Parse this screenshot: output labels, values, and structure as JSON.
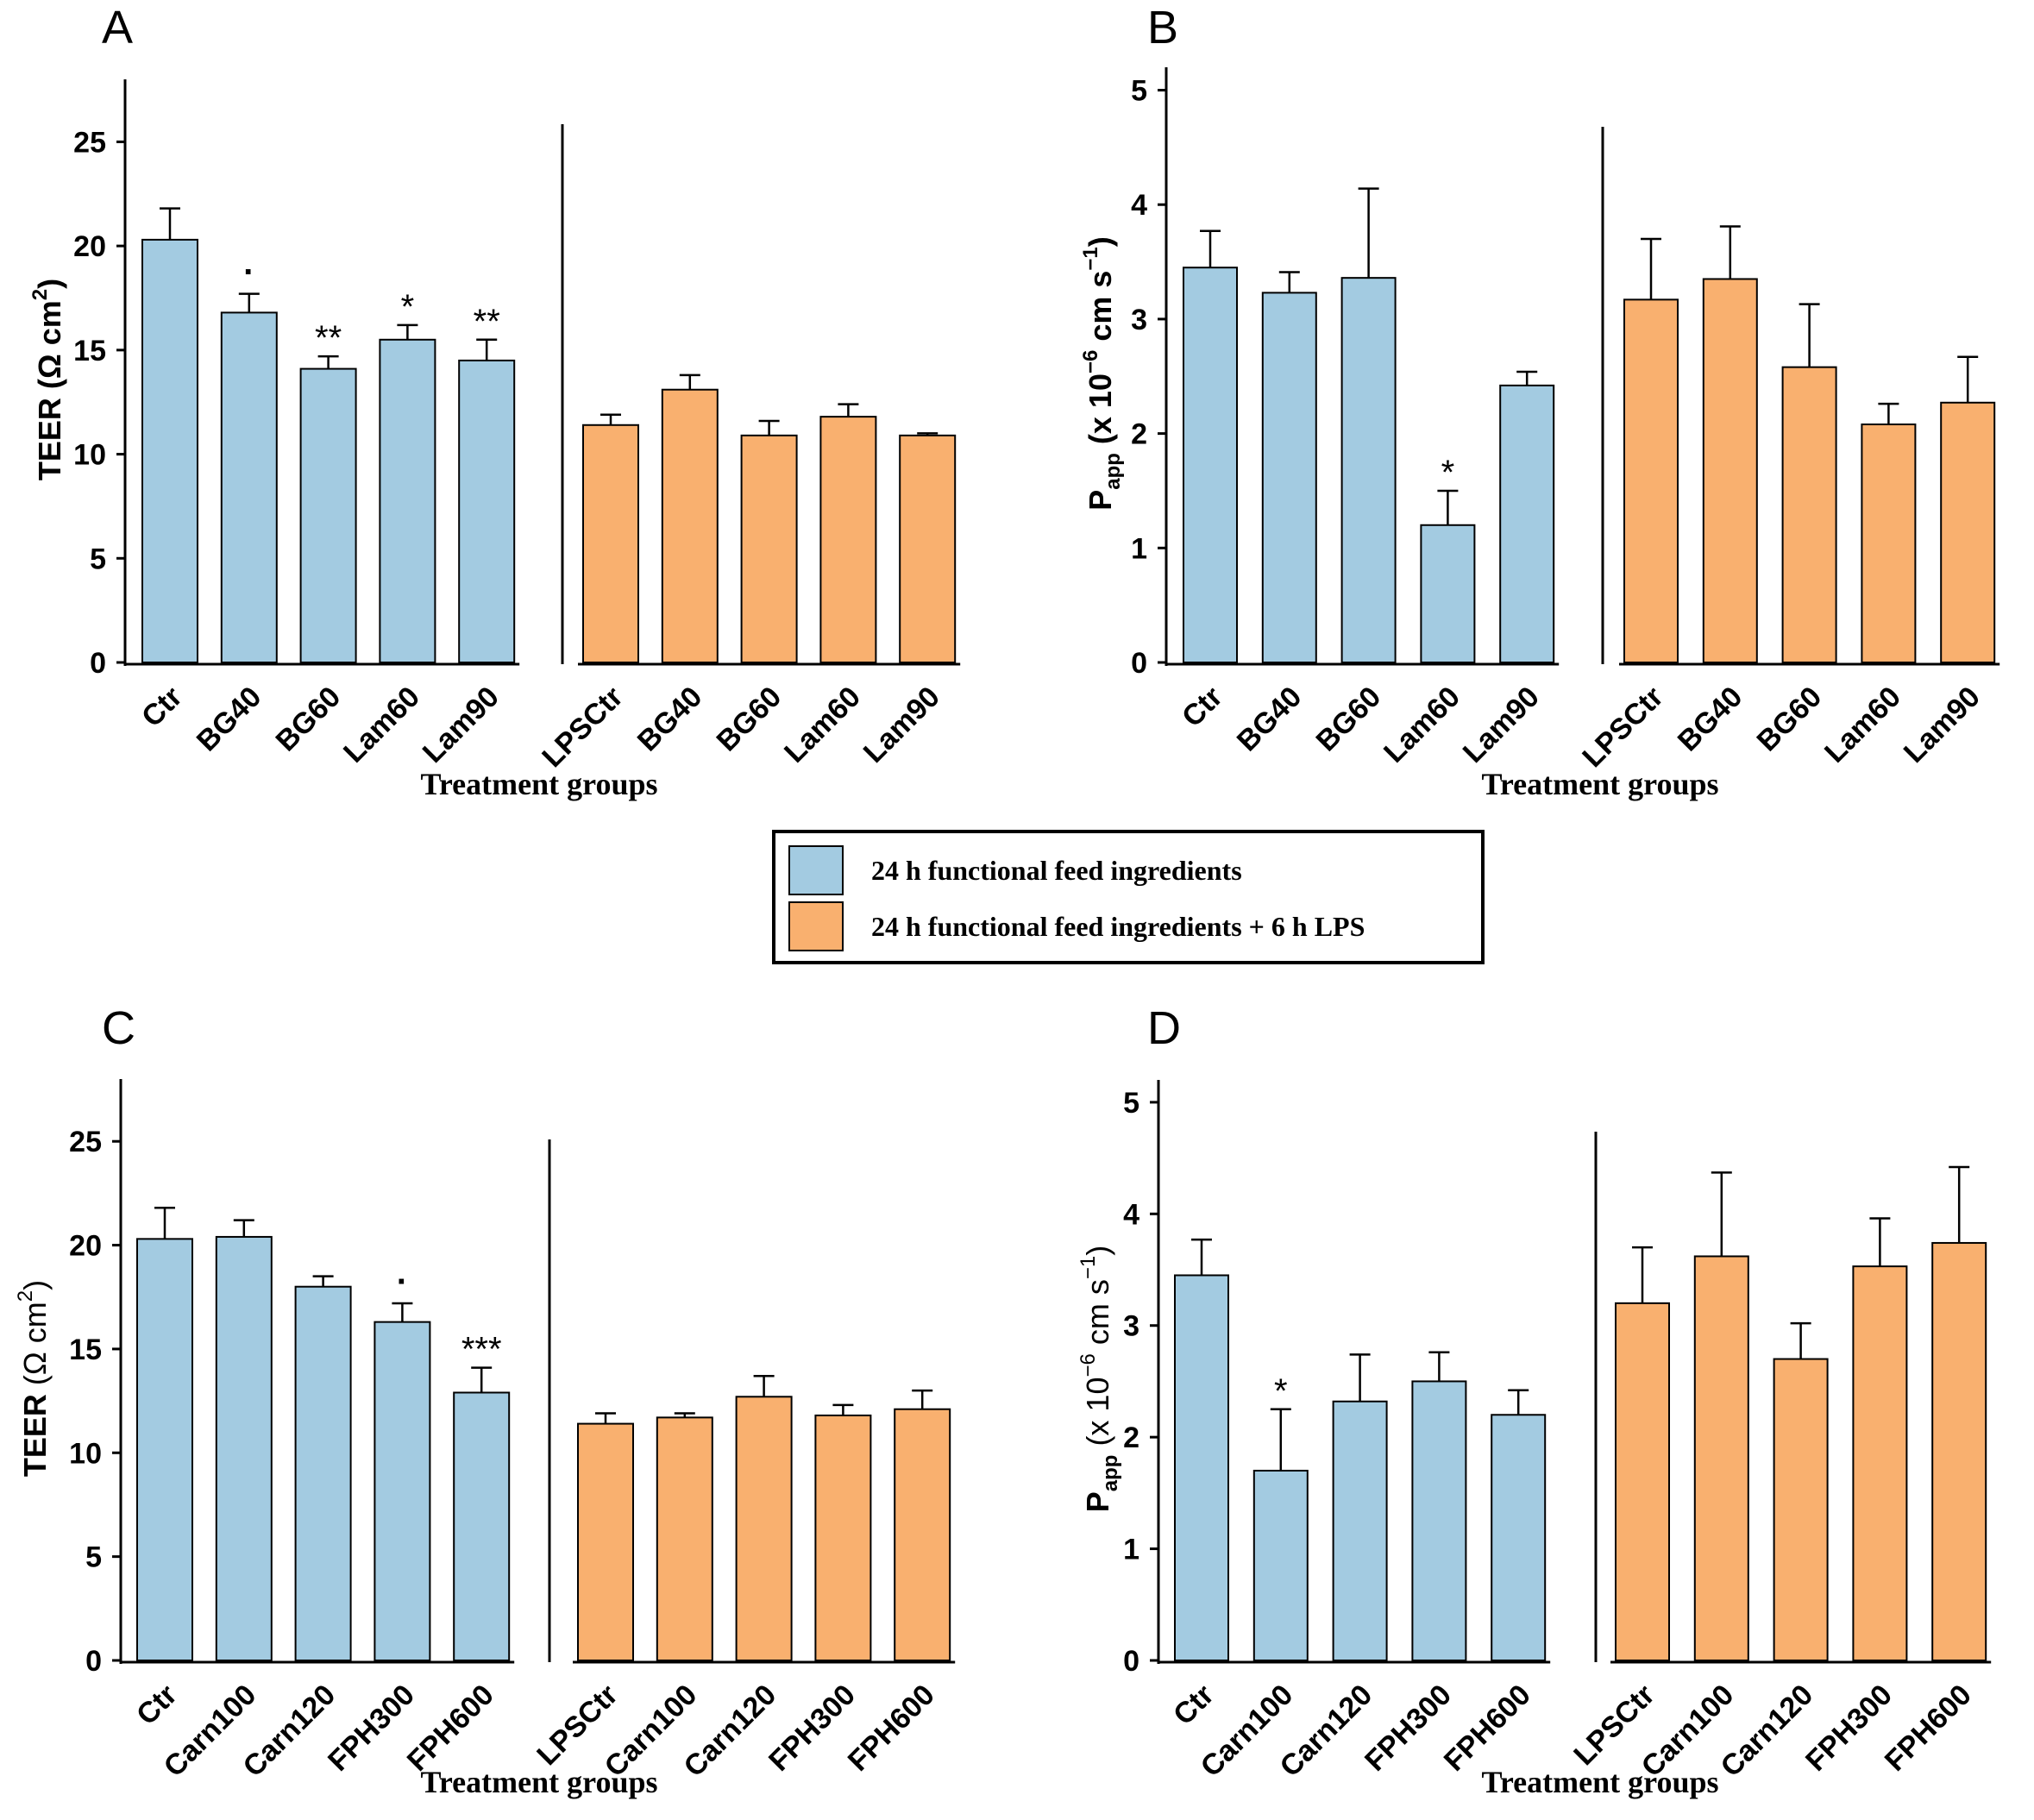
{
  "colors": {
    "group1": "#a3cbe1",
    "group2": "#f9b06f",
    "axis": "#000000"
  },
  "legend": {
    "items": [
      {
        "label": "24 h functional feed ingredients",
        "color": "#a3cbe1"
      },
      {
        "label": "24 h functional feed ingredients + 6 h LPS",
        "color": "#f9b06f"
      }
    ]
  },
  "chart_data": [
    {
      "panel": "A",
      "type": "bar",
      "ylabel": "TEER (Ω cm²)",
      "xlabel": "Treatment groups",
      "ylim": [
        0,
        28
      ],
      "yticks": [
        0,
        5,
        10,
        15,
        20,
        25
      ],
      "ylabel_mode": "teer_bold",
      "categories": [
        "Ctr",
        "BG40",
        "BG60",
        "Lam60",
        "Lam90",
        "LPSCtr",
        "BG40",
        "BG60",
        "Lam60",
        "Lam90"
      ],
      "groups": [
        1,
        1,
        1,
        1,
        1,
        2,
        2,
        2,
        2,
        2
      ],
      "values": [
        20.3,
        16.8,
        14.1,
        15.5,
        14.5,
        11.4,
        13.1,
        10.9,
        11.8,
        10.9
      ],
      "errors": [
        1.5,
        0.9,
        0.6,
        0.7,
        1.0,
        0.5,
        0.7,
        0.7,
        0.6,
        0.1
      ],
      "annotations": [
        "",
        "·",
        "**",
        "*",
        "**",
        "",
        "",
        "",
        "",
        ""
      ]
    },
    {
      "panel": "B",
      "type": "bar",
      "ylabel": "Papp (x 10⁻⁶ cm s⁻¹)",
      "xlabel": "Treatment groups",
      "ylim": [
        0,
        5.2
      ],
      "yticks": [
        0,
        1,
        2,
        3,
        4,
        5
      ],
      "ylabel_mode": "papp_bold",
      "categories": [
        "Ctr",
        "BG40",
        "BG60",
        "Lam60",
        "Lam90",
        "LPSCtr",
        "BG40",
        "BG60",
        "Lam60",
        "Lam90"
      ],
      "groups": [
        1,
        1,
        1,
        1,
        1,
        2,
        2,
        2,
        2,
        2
      ],
      "values": [
        3.45,
        3.23,
        3.36,
        1.2,
        2.42,
        3.17,
        3.35,
        2.58,
        2.08,
        2.27
      ],
      "errors": [
        0.32,
        0.18,
        0.78,
        0.3,
        0.12,
        0.53,
        0.46,
        0.55,
        0.18,
        0.4
      ],
      "annotations": [
        "",
        "",
        "",
        "*",
        "",
        "",
        "",
        "",
        "",
        ""
      ]
    },
    {
      "panel": "C",
      "type": "bar",
      "ylabel": "TEER (Ω cm²)",
      "xlabel": "Treatment groups",
      "ylim": [
        0,
        28
      ],
      "yticks": [
        0,
        5,
        10,
        15,
        20,
        25
      ],
      "ylabel_mode": "teer_mixed",
      "categories": [
        "Ctr",
        "Carn100",
        "Carn120",
        "FPH300",
        "FPH600",
        "LPSCtr",
        "Carn100",
        "Carn120",
        "FPH300",
        "FPH600"
      ],
      "groups": [
        1,
        1,
        1,
        1,
        1,
        2,
        2,
        2,
        2,
        2
      ],
      "values": [
        20.3,
        20.4,
        18.0,
        16.3,
        12.9,
        11.4,
        11.7,
        12.7,
        11.8,
        12.1
      ],
      "errors": [
        1.5,
        0.8,
        0.5,
        0.9,
        1.2,
        0.5,
        0.2,
        1.0,
        0.5,
        0.9
      ],
      "annotations": [
        "",
        "",
        "",
        "·",
        "***",
        "",
        "",
        "",
        "",
        ""
      ]
    },
    {
      "panel": "D",
      "type": "bar",
      "ylabel": "Papp (x 10⁻⁶ cm s⁻¹)",
      "xlabel": "Treatment groups",
      "ylim": [
        0,
        5.2
      ],
      "yticks": [
        0,
        1,
        2,
        3,
        4,
        5
      ],
      "ylabel_mode": "papp_mixed",
      "categories": [
        "Ctr",
        "Carn100",
        "Carn120",
        "FPH300",
        "FPH600",
        "LPSCtr",
        "Carn100",
        "Carn120",
        "FPH300",
        "FPH600"
      ],
      "groups": [
        1,
        1,
        1,
        1,
        1,
        2,
        2,
        2,
        2,
        2
      ],
      "values": [
        3.45,
        1.7,
        2.32,
        2.5,
        2.2,
        3.2,
        3.62,
        2.7,
        3.53,
        3.74
      ],
      "errors": [
        0.32,
        0.55,
        0.42,
        0.26,
        0.22,
        0.5,
        0.75,
        0.32,
        0.43,
        0.68
      ],
      "annotations": [
        "",
        "*",
        "",
        "",
        "",
        "",
        "",
        "",
        "",
        ""
      ]
    }
  ]
}
